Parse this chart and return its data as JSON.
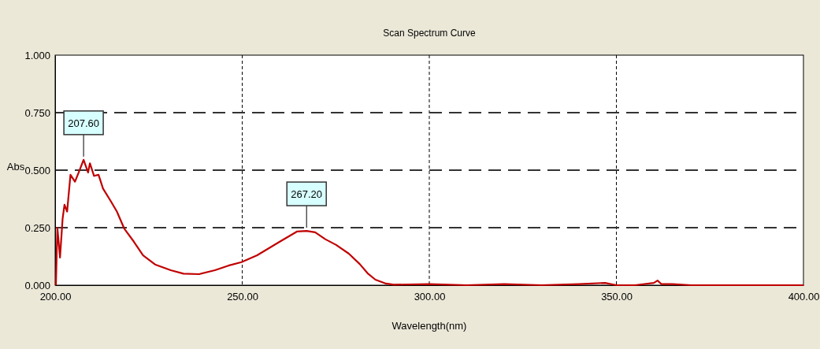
{
  "chart_data": {
    "type": "line",
    "title": "Scan Spectrum Curve",
    "xlabel": "Wavelength(nm)",
    "ylabel": "Abs",
    "x": [
      200.2,
      200.6,
      201.3,
      202,
      202.5,
      203.2,
      204.1,
      205.3,
      206.3,
      207.6,
      208.8,
      209.3,
      210.4,
      211.6,
      212.8,
      214.7,
      216.5,
      218.5,
      221,
      223.5,
      226.7,
      230.9,
      234.3,
      238.5,
      242.7,
      246.3,
      249.8,
      254,
      259.6,
      264.6,
      267.2,
      269.5,
      272.2,
      275.1,
      278.5,
      281.4,
      283.5,
      285.6,
      288.4,
      290.5,
      300,
      310,
      320,
      330,
      340,
      347,
      350,
      355,
      360,
      361,
      362,
      365,
      370,
      380,
      390,
      400
    ],
    "series": [
      {
        "color": "#c00000",
        "values": [
          0.0,
          0.25,
          0.12,
          0.29,
          0.35,
          0.32,
          0.48,
          0.45,
          0.49,
          0.545,
          0.49,
          0.53,
          0.475,
          0.48,
          0.42,
          0.37,
          0.32,
          0.245,
          0.19,
          0.13,
          0.09,
          0.065,
          0.05,
          0.048,
          0.065,
          0.085,
          0.1,
          0.13,
          0.185,
          0.233,
          0.236,
          0.23,
          0.2,
          0.175,
          0.137,
          0.092,
          0.052,
          0.024,
          0.007,
          0.002,
          0.005,
          0.0,
          0.005,
          0.0,
          0.005,
          0.01,
          0.0,
          0.0,
          0.01,
          0.02,
          0.005,
          0.005,
          0.0,
          0.0,
          0.0,
          0.0
        ]
      }
    ],
    "xlim": [
      200,
      400
    ],
    "xticks": [
      {
        "value": 200,
        "label": "200.00"
      },
      {
        "value": 250,
        "label": "250.00"
      },
      {
        "value": 300,
        "label": "300.00"
      },
      {
        "value": 350,
        "label": "350.00"
      },
      {
        "value": 400,
        "label": "400.00"
      }
    ],
    "ylim": [
      0,
      1
    ],
    "yticks": [
      {
        "value": 0,
        "label": "0.000"
      },
      {
        "value": 0.25,
        "label": "0.250"
      },
      {
        "value": 0.5,
        "label": "0.500"
      },
      {
        "value": 0.75,
        "label": "0.750"
      },
      {
        "value": 1,
        "label": "1.000"
      }
    ],
    "grid": true,
    "line_style": "solid",
    "marker": "none",
    "annotations": [
      {
        "text": "207.60",
        "x": 207.6,
        "y": 0.545
      },
      {
        "text": "267.20",
        "x": 267.2,
        "y": 0.236
      }
    ]
  }
}
